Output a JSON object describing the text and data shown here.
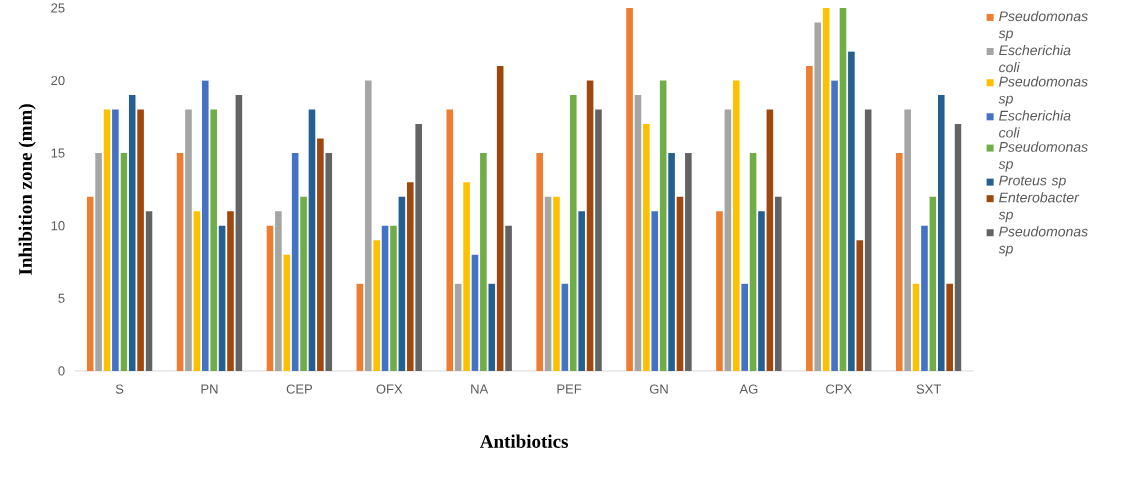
{
  "chart_data": {
    "type": "bar",
    "xlabel": "Antibiotics",
    "ylabel": "Inhibition zone (mm)",
    "categories": [
      "S",
      "PN",
      "CEP",
      "OFX",
      "NA",
      "PEF",
      "GN",
      "AG",
      "CPX",
      "SXT"
    ],
    "series": [
      {
        "name": "Pseudomonas sp",
        "color": "#ed7d31",
        "values": [
          12,
          15,
          10,
          6,
          18,
          15,
          25,
          11,
          21,
          15
        ]
      },
      {
        "name": "Escherichia coli",
        "color": "#a5a5a5",
        "values": [
          15,
          18,
          11,
          20,
          6,
          12,
          19,
          18,
          24,
          18
        ]
      },
      {
        "name": "Pseudomonas sp",
        "color": "#ffc000",
        "values": [
          18,
          11,
          8,
          9,
          13,
          12,
          17,
          20,
          25,
          6
        ]
      },
      {
        "name": "Escherichia coli",
        "color": "#4472c4",
        "values": [
          18,
          20,
          15,
          10,
          8,
          6,
          11,
          6,
          20,
          10
        ]
      },
      {
        "name": "Pseudomonas sp",
        "color": "#70ad47",
        "values": [
          15,
          18,
          12,
          10,
          15,
          19,
          20,
          15,
          25,
          12
        ]
      },
      {
        "name": "Proteus sp",
        "color": "#255e91",
        "values": [
          19,
          10,
          18,
          12,
          6,
          11,
          15,
          11,
          22,
          19
        ]
      },
      {
        "name": "Enterobacter sp",
        "color": "#9e480e",
        "values": [
          18,
          11,
          16,
          13,
          21,
          20,
          12,
          18,
          9,
          6
        ]
      },
      {
        "name": "Pseudomonas sp",
        "color": "#636363",
        "values": [
          11,
          19,
          15,
          17,
          10,
          18,
          15,
          12,
          18,
          17
        ]
      }
    ],
    "ylim": [
      0,
      25
    ],
    "yticks": [
      0,
      5,
      10,
      15,
      20,
      25
    ],
    "legend": "right"
  }
}
